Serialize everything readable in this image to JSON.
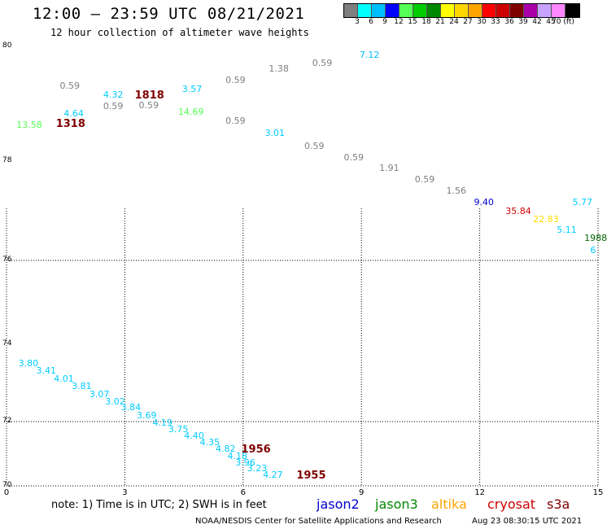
{
  "header": {
    "title": "12:00 – 23:59 UTC 08/21/2021",
    "subtitle": "12 hour collection of altimeter wave heights"
  },
  "color_scale": {
    "labels": [
      "3",
      "6",
      "9",
      "12",
      "15",
      "18",
      "21",
      "24",
      "27",
      "30",
      "33",
      "36",
      "39",
      "42",
      "45",
      "70 (ft)"
    ],
    "colors": [
      "#7f7f7f",
      "#00ffff",
      "#00bfff",
      "#0000ff",
      "#55ff55",
      "#00cc00",
      "#008800",
      "#ffff00",
      "#ffd700",
      "#ffa500",
      "#ff0000",
      "#cc0000",
      "#800000",
      "#aa00aa",
      "#c8a2ff",
      "#ff88ff",
      "#000000"
    ]
  },
  "axes": {
    "y_labels": [
      "80",
      "78",
      "76",
      "74",
      "72",
      "70"
    ],
    "x_labels": [
      "0",
      "3",
      "6",
      "9",
      "12",
      "15"
    ]
  },
  "observations": [
    {
      "text": "7.12",
      "color": "#00bfff",
      "lon": 9.2,
      "lat": 79.85
    },
    {
      "text": "0.59",
      "color": "#7f7f7f",
      "lon": 8.0,
      "lat": 79.7
    },
    {
      "text": "1.38",
      "color": "#7f7f7f",
      "lon": 6.9,
      "lat": 79.6
    },
    {
      "text": "0.59",
      "color": "#7f7f7f",
      "lon": 5.8,
      "lat": 79.4
    },
    {
      "text": "3.57",
      "color": "#00ccff",
      "lon": 4.7,
      "lat": 79.25
    },
    {
      "text": "0.59",
      "color": "#7f7f7f",
      "lon": 1.6,
      "lat": 79.3
    },
    {
      "text": "4.32",
      "color": "#00ccff",
      "lon": 2.7,
      "lat": 79.15
    },
    {
      "text": "1818",
      "color": "#800000",
      "lon": 3.5,
      "lat": 79.15,
      "big": true
    },
    {
      "text": "0.59",
      "color": "#7f7f7f",
      "lon": 2.7,
      "lat": 78.95
    },
    {
      "text": "0.59",
      "color": "#7f7f7f",
      "lon": 3.6,
      "lat": 78.97
    },
    {
      "text": "4.64",
      "color": "#00ccff",
      "lon": 1.7,
      "lat": 78.82
    },
    {
      "text": "14.69",
      "color": "#55ff55",
      "lon": 4.6,
      "lat": 78.85
    },
    {
      "text": "13.58",
      "color": "#55ff55",
      "lon": 0.5,
      "lat": 78.62
    },
    {
      "text": "1318",
      "color": "#800000",
      "lon": 1.5,
      "lat": 78.65,
      "big": true
    },
    {
      "text": "0.59",
      "color": "#7f7f7f",
      "lon": 5.8,
      "lat": 78.7
    },
    {
      "text": "3.01",
      "color": "#00ccff",
      "lon": 6.8,
      "lat": 78.48
    },
    {
      "text": "0.59",
      "color": "#7f7f7f",
      "lon": 7.8,
      "lat": 78.25
    },
    {
      "text": "0.59",
      "color": "#7f7f7f",
      "lon": 8.8,
      "lat": 78.05
    },
    {
      "text": "1.91",
      "color": "#7f7f7f",
      "lon": 9.7,
      "lat": 77.85
    },
    {
      "text": "0.59",
      "color": "#7f7f7f",
      "lon": 10.6,
      "lat": 77.62
    },
    {
      "text": "1.56",
      "color": "#7f7f7f",
      "lon": 11.4,
      "lat": 77.4
    },
    {
      "text": "9.40",
      "color": "#0000cc",
      "lon": 12.1,
      "lat": 77.16
    },
    {
      "text": "35.84",
      "color": "#cc0000",
      "lon": 12.9,
      "lat": 76.98
    },
    {
      "text": "5.77",
      "color": "#00ccff",
      "lon": 14.6,
      "lat": 77.16
    },
    {
      "text": "22.83",
      "color": "#ffdd00",
      "lon": 13.6,
      "lat": 76.82
    },
    {
      "text": "5.11",
      "color": "#00ccff",
      "lon": 14.2,
      "lat": 76.6
    },
    {
      "text": "1988",
      "color": "#006600",
      "lon": 14.9,
      "lat": 76.45
    },
    {
      "text": "6",
      "color": "#00ccff",
      "lon": 15.05,
      "lat": 76.2
    },
    {
      "text": "3.80",
      "color": "#00ccff",
      "lon": 0.55,
      "lat": 73.5
    },
    {
      "text": "3.41",
      "color": "#00ccff",
      "lon": 1.0,
      "lat": 73.3
    },
    {
      "text": "4.01",
      "color": "#00ccff",
      "lon": 1.45,
      "lat": 73.1
    },
    {
      "text": "3.81",
      "color": "#00ccff",
      "lon": 1.9,
      "lat": 72.9
    },
    {
      "text": "3.07",
      "color": "#00ccff",
      "lon": 2.35,
      "lat": 72.7
    },
    {
      "text": "3.02",
      "color": "#00ccff",
      "lon": 2.75,
      "lat": 72.5
    },
    {
      "text": "3.84",
      "color": "#00ccff",
      "lon": 3.15,
      "lat": 72.35
    },
    {
      "text": "3.69",
      "color": "#00ccff",
      "lon": 3.55,
      "lat": 72.15
    },
    {
      "text": "4.19",
      "color": "#00ccff",
      "lon": 3.95,
      "lat": 71.95
    },
    {
      "text": "3.75",
      "color": "#00ccff",
      "lon": 4.35,
      "lat": 71.75
    },
    {
      "text": "4.40",
      "color": "#00ccff",
      "lon": 4.75,
      "lat": 71.55
    },
    {
      "text": "4.35",
      "color": "#00ccff",
      "lon": 5.15,
      "lat": 71.35
    },
    {
      "text": "4.82",
      "color": "#00ccff",
      "lon": 5.55,
      "lat": 71.15
    },
    {
      "text": "1956",
      "color": "#800000",
      "lon": 6.2,
      "lat": 71.13,
      "big": true
    },
    {
      "text": "4.18",
      "color": "#00ccff",
      "lon": 5.85,
      "lat": 70.9
    },
    {
      "text": "3.96",
      "color": "#00ccff",
      "lon": 6.05,
      "lat": 70.72
    },
    {
      "text": "3.23",
      "color": "#00ccff",
      "lon": 6.35,
      "lat": 70.52
    },
    {
      "text": "4.27",
      "color": "#00ccff",
      "lon": 6.75,
      "lat": 70.32
    },
    {
      "text": "1955",
      "color": "#800000",
      "lon": 7.6,
      "lat": 70.32,
      "big": true
    }
  ],
  "footer": {
    "note": "note:  1) Time is in UTC;  2) SWH is in feet",
    "satellites": [
      {
        "name": "jason2",
        "color": "#0000cc"
      },
      {
        "name": "jason3",
        "color": "#008800"
      },
      {
        "name": "altika",
        "color": "#ffa500"
      },
      {
        "name": "cryosat",
        "color": "#cc0000"
      },
      {
        "name": "s3a",
        "color": "#800000"
      }
    ],
    "credit": "NOAA/NESDIS Center for Satellite Applications and Research",
    "timestamp": "Aug 23 08:30:15 UTC 2021"
  }
}
